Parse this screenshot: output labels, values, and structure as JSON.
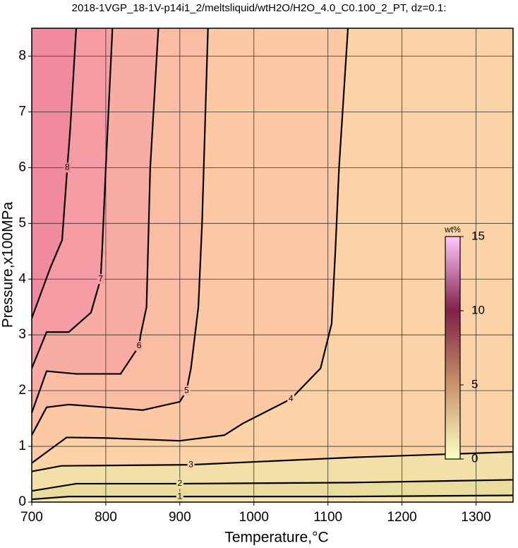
{
  "chart_data": {
    "type": "contour",
    "title": "2018-1VGP_18-1V-p14i1_2/meltsliquid/wtH2O/H2O_4.0_C0.100_2_PT, dz=0.1:",
    "x_label": "Temperature,°C",
    "y_label": "Pressure,x100MPa",
    "xlim": [
      700,
      1350
    ],
    "ylim": [
      0,
      8.5
    ],
    "xticks": [
      700,
      800,
      900,
      1000,
      1100,
      1200,
      1300
    ],
    "yticks": [
      0,
      1,
      2,
      3,
      4,
      5,
      6,
      7,
      8
    ],
    "grid": true,
    "background_color": "#f3e7ad",
    "contours": [
      {
        "level": 1,
        "color": "#e9dc9c",
        "x": [
          700,
          750,
          900,
          1130,
          1350
        ],
        "y": [
          0.05,
          0.1,
          0.1,
          0.1,
          0.12
        ]
      },
      {
        "level": 2,
        "color": "#f3e0a8",
        "x": [
          700,
          760,
          900,
          1130,
          1350
        ],
        "y": [
          0.2,
          0.33,
          0.33,
          0.35,
          0.4
        ]
      },
      {
        "level": 3,
        "color": "#fcd3a6",
        "x": [
          700,
          740,
          915,
          1130,
          1350
        ],
        "y": [
          0.55,
          0.65,
          0.67,
          0.8,
          0.9
        ]
      },
      {
        "level": 4,
        "color": "#fdc9a4",
        "x": [
          700,
          747,
          800,
          900,
          960,
          985,
          1050,
          1090,
          1105,
          1110,
          1115,
          1127
        ],
        "y": [
          0.7,
          1.16,
          1.15,
          1.1,
          1.2,
          1.41,
          1.85,
          2.4,
          3.2,
          4.5,
          6,
          8.5
        ]
      },
      {
        "level": 5,
        "color": "#fbbca4",
        "x": [
          700,
          720,
          750,
          850,
          900,
          909,
          915,
          925,
          930,
          938
        ],
        "y": [
          1.2,
          1.7,
          1.75,
          1.65,
          1.8,
          2.0,
          2.4,
          3.5,
          5,
          8.5
        ]
      },
      {
        "level": 6,
        "color": "#f8aca4",
        "x": [
          700,
          720,
          760,
          820,
          845,
          847,
          855,
          860,
          871
        ],
        "y": [
          1.6,
          2.35,
          2.3,
          2.3,
          2.8,
          3.0,
          3.5,
          6,
          8.5
        ]
      },
      {
        "level": 7,
        "color": "#f59ca4",
        "x": [
          700,
          720,
          750,
          780,
          793,
          795,
          800,
          809
        ],
        "y": [
          2.4,
          3.05,
          3.05,
          3.4,
          4.0,
          4.5,
          6,
          8.5
        ]
      },
      {
        "level": 8,
        "color": "#f08a9e",
        "x": [
          700,
          725,
          741,
          748,
          752,
          760
        ],
        "y": [
          3.3,
          4.2,
          4.7,
          6,
          6.7,
          8.5
        ]
      }
    ],
    "colorbar": {
      "label": "wt%",
      "lim": [
        0,
        15
      ],
      "ticks": [
        0,
        5,
        10,
        15
      ],
      "colors": [
        "#ffffc8",
        "#c8946a",
        "#802048",
        "#ffc8ff"
      ]
    }
  }
}
